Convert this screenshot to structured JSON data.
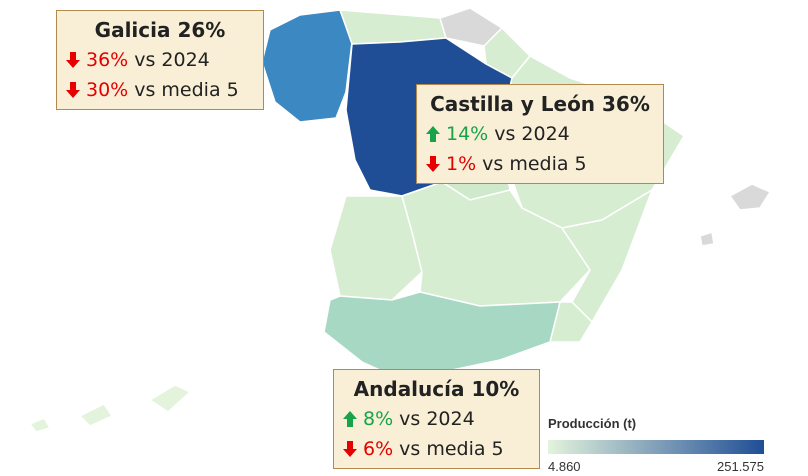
{
  "callouts": [
    {
      "title": "Galicia 26%",
      "lines": [
        {
          "direction": "down",
          "change": "36%",
          "label": "vs 2024"
        },
        {
          "direction": "down",
          "change": "30%",
          "label": "vs media 5"
        }
      ]
    },
    {
      "title": "Castilla y León 36%",
      "lines": [
        {
          "direction": "up",
          "change": "14%",
          "label": "vs 2024"
        },
        {
          "direction": "down",
          "change": "1%",
          "label": "vs media 5"
        }
      ]
    },
    {
      "title": "Andalucía 10%",
      "lines": [
        {
          "direction": "up",
          "change": "8%",
          "label": "vs 2024"
        },
        {
          "direction": "down",
          "change": "6%",
          "label": "vs media 5"
        }
      ]
    }
  ],
  "legend": {
    "title": "Producción (t)",
    "min_label": "4.860",
    "max_label": "251.575",
    "colors": [
      "#e3f3dc",
      "#1f4e96"
    ]
  }
}
